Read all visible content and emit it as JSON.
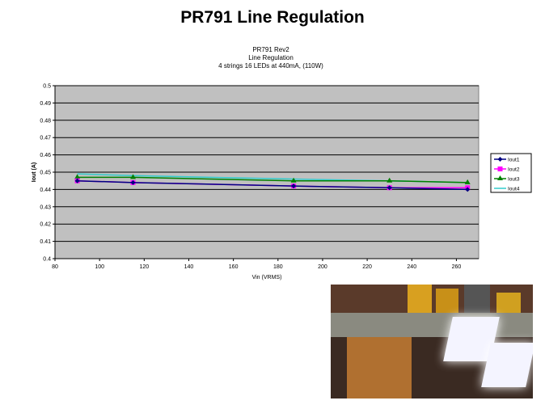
{
  "slide": {
    "title": "PR791 Line Regulation"
  },
  "chart_data": {
    "type": "line",
    "title": [
      "PR791 Rev2",
      "Line Regulation",
      "4 strings 16 LEDs at 440mA, (110W)"
    ],
    "xlabel": "Vin (VRMS)",
    "ylabel": "Iout (A)",
    "xlim": [
      80,
      270
    ],
    "ylim": [
      0.4,
      0.5
    ],
    "xticks": [
      80,
      100,
      120,
      140,
      160,
      180,
      200,
      220,
      240,
      260
    ],
    "yticks": [
      0.4,
      0.41,
      0.42,
      0.43,
      0.44,
      0.45,
      0.46,
      0.47,
      0.48,
      0.49,
      0.5
    ],
    "ytick_labels": [
      "0.4",
      "0.41",
      "0.42",
      "0.43",
      "0.44",
      "0.45",
      "0.46",
      "0.47",
      "0.48",
      "0.49",
      "0.5"
    ],
    "grid": "horizontal",
    "plot_background": "#c0c0c0",
    "legend_position": "right",
    "x": [
      90,
      115,
      187,
      230,
      265
    ],
    "series": [
      {
        "name": "Iout1",
        "color": "#000080",
        "marker": "diamond",
        "values": [
          0.445,
          0.444,
          0.442,
          0.441,
          0.44
        ]
      },
      {
        "name": "Iout2",
        "color": "#ff00ff",
        "marker": "square",
        "values": [
          0.445,
          0.444,
          0.442,
          0.441,
          0.441
        ]
      },
      {
        "name": "Iout3",
        "color": "#008000",
        "marker": "triangle",
        "values": [
          0.447,
          0.447,
          0.445,
          0.445,
          0.444
        ]
      },
      {
        "name": "Iout4",
        "color": "#33cccc",
        "marker": "none",
        "values": [
          0.449,
          0.448,
          0.446,
          0.445,
          0.444
        ]
      }
    ]
  },
  "photo": {
    "subject": "LED driver boards and multimeters"
  }
}
